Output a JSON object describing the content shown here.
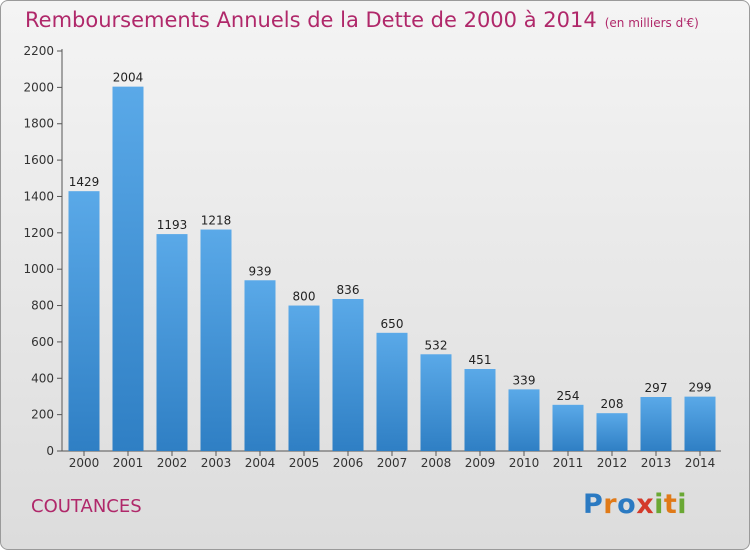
{
  "title": "Remboursements Annuels de la Dette de 2000 à 2014",
  "subtitle": "(en milliers d'€)",
  "city": "COUTANCES",
  "logo": {
    "text": "Proxiti"
  },
  "colors": {
    "bar_light": "#5aa9e8",
    "bar_dark": "#2f7fc4",
    "title": "#b0286a"
  },
  "chart_data": {
    "type": "bar",
    "title": "Remboursements Annuels de la Dette de 2000 à 2014",
    "subtitle": "(en milliers d'€)",
    "categories": [
      "2000",
      "2001",
      "2002",
      "2003",
      "2004",
      "2005",
      "2006",
      "2007",
      "2008",
      "2009",
      "2010",
      "2011",
      "2012",
      "2013",
      "2014"
    ],
    "values": [
      1429,
      2004,
      1193,
      1218,
      939,
      800,
      836,
      650,
      532,
      451,
      339,
      254,
      208,
      297,
      299
    ],
    "ylim": [
      0,
      2200
    ],
    "yticks": [
      0,
      200,
      400,
      600,
      800,
      1000,
      1200,
      1400,
      1600,
      1800,
      2000,
      2200
    ],
    "grid": false,
    "data_labels": true
  }
}
